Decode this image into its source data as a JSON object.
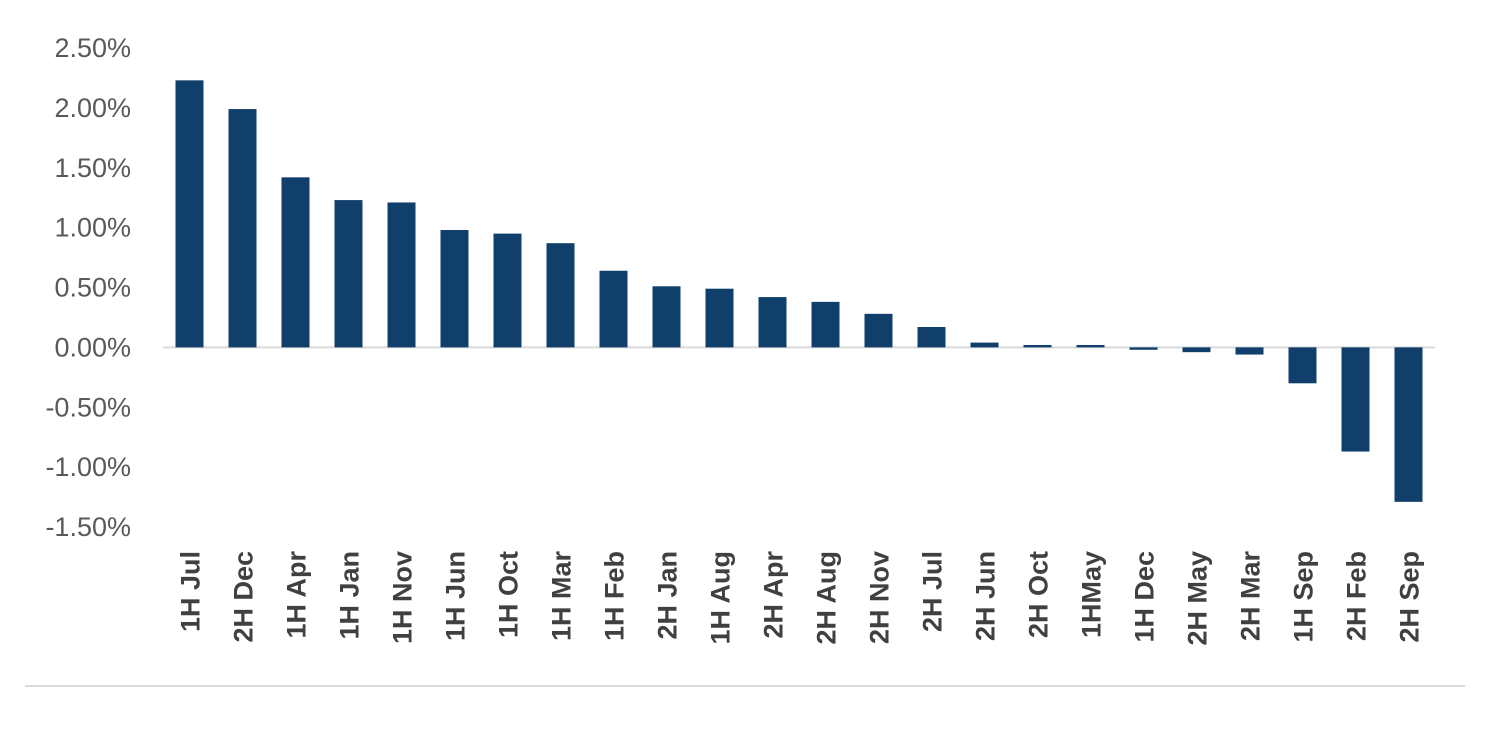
{
  "chart_data": {
    "type": "bar",
    "title": "",
    "xlabel": "",
    "ylabel": "",
    "ylim": [
      -1.5,
      2.5
    ],
    "yticks": [
      2.5,
      2.0,
      1.5,
      1.0,
      0.5,
      0.0,
      -0.5,
      -1.0,
      -1.5
    ],
    "ytick_labels": [
      "2.50%",
      "2.00%",
      "1.50%",
      "1.00%",
      "0.50%",
      "0.00%",
      "-0.50%",
      "-1.00%",
      "-1.50%"
    ],
    "categories": [
      "1H Jul",
      "2H Dec",
      "1H Apr",
      "1H Jan",
      "1H Nov",
      "1H Jun",
      "1H Oct",
      "1H Mar",
      "1H Feb",
      "2H Jan",
      "1H Aug",
      "2H Apr",
      "2H Aug",
      "2H Nov",
      "2H Jul",
      "2H Jun",
      "2H Oct",
      "1HMay",
      "1H Dec",
      "2H May",
      "2H Mar",
      "1H Sep",
      "2H Feb",
      "2H Sep"
    ],
    "values": [
      2.23,
      1.99,
      1.42,
      1.23,
      1.21,
      0.98,
      0.95,
      0.87,
      0.64,
      0.51,
      0.49,
      0.42,
      0.38,
      0.28,
      0.17,
      0.04,
      0.02,
      0.02,
      -0.02,
      -0.04,
      -0.06,
      -0.3,
      -0.87,
      -1.29
    ],
    "bar_color": "#0f3f6a",
    "grid": false,
    "legend": "none"
  }
}
